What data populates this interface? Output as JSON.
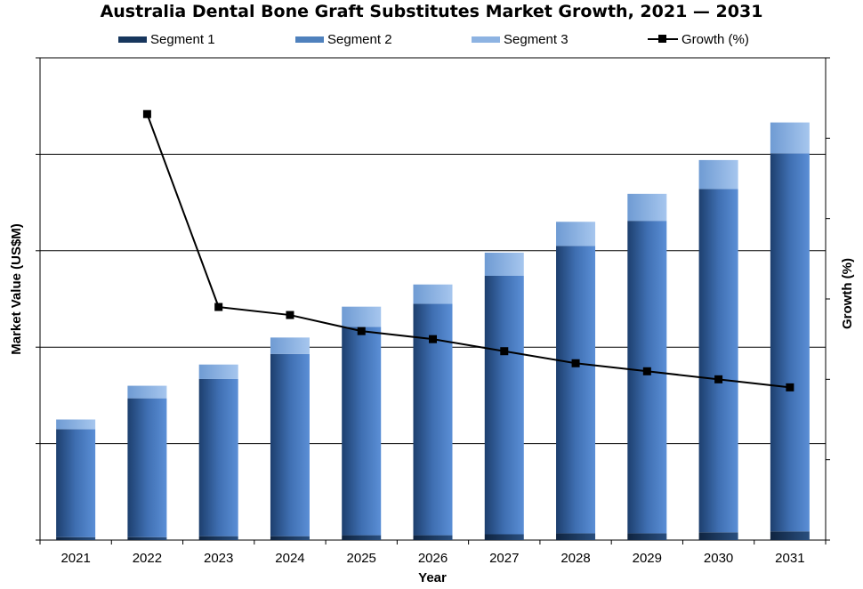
{
  "chart_data": {
    "type": "bar",
    "stacked": true,
    "title": "Australia Dental Bone Graft Substitutes Market Growth, 2021 — 2031",
    "xlabel": "Year",
    "ylabel": "Market Value (US$M)",
    "y2label": "Growth (%)",
    "categories": [
      "2021",
      "2022",
      "2023",
      "2024",
      "2025",
      "2026",
      "2027",
      "2028",
      "2029",
      "2030",
      "2031"
    ],
    "ylim": [
      0,
      5
    ],
    "y2lim": [
      0,
      6
    ],
    "series": [
      {
        "name": "Segment 1",
        "type": "bar",
        "color": "#17365d",
        "values": [
          0.03,
          0.03,
          0.04,
          0.04,
          0.05,
          0.05,
          0.06,
          0.07,
          0.07,
          0.08,
          0.09
        ]
      },
      {
        "name": "Segment 2",
        "type": "bar",
        "color": "#4f81bd",
        "values": [
          1.12,
          1.44,
          1.63,
          1.89,
          2.16,
          2.4,
          2.68,
          2.98,
          3.24,
          3.56,
          3.92
        ]
      },
      {
        "name": "Segment 3",
        "type": "bar",
        "color": "#8db3e2",
        "values": [
          0.1,
          0.13,
          0.15,
          0.17,
          0.21,
          0.2,
          0.24,
          0.25,
          0.28,
          0.3,
          0.32
        ]
      },
      {
        "name": "Growth (%)",
        "type": "line",
        "axis": "right",
        "color": "#000000",
        "values": [
          null,
          5.3,
          2.9,
          2.8,
          2.6,
          2.5,
          2.35,
          2.2,
          2.1,
          2.0,
          1.9
        ]
      }
    ],
    "legend": "top",
    "grid": true
  }
}
